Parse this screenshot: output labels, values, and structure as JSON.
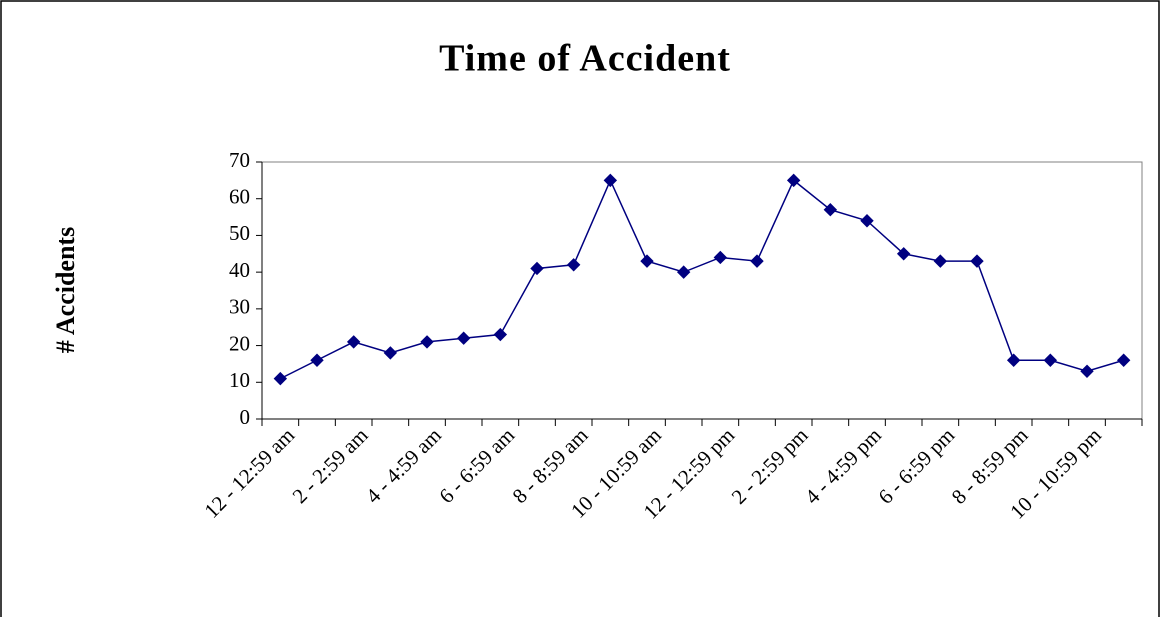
{
  "chart_data": {
    "type": "line",
    "title": "Time of Accident",
    "y_label": "# Accidents",
    "categories": [
      "12 - 12:59 am",
      null,
      "2 - 2:59 am",
      null,
      "4 - 4:59 am",
      null,
      "6 - 6:59 am",
      null,
      "8 - 8:59 am",
      null,
      "10 - 10:59 am",
      null,
      "12 - 12:59 pm",
      null,
      "2 - 2:59 pm",
      null,
      "4 - 4:59 pm",
      null,
      "6 - 6:59 pm",
      null,
      "8 - 8:59 pm",
      null,
      "10 - 10:59 pm",
      null
    ],
    "values": [
      11,
      16,
      21,
      18,
      21,
      22,
      23,
      41,
      42,
      65,
      43,
      40,
      44,
      43,
      65,
      57,
      54,
      45,
      43,
      43,
      16,
      16,
      13,
      16
    ],
    "color": "#000080",
    "marker": "diamond",
    "ylim": [
      0,
      70
    ],
    "yticks": [
      0,
      10,
      20,
      30,
      40,
      50,
      60,
      70
    ],
    "grid": false
  }
}
